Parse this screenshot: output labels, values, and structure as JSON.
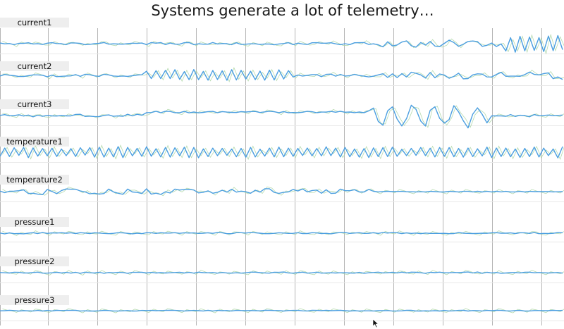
{
  "title": "Systems generate a lot of telemetry…",
  "colors": {
    "line": "#4a9ee0",
    "noise": "#a8d4a0",
    "grid": "#b5b5b5",
    "label_bg": "#eeeeee"
  },
  "chart_data": {
    "type": "line",
    "title": "Systems generate a lot of telemetry…",
    "grid": true,
    "legend": "none",
    "x": [
      0,
      1,
      2,
      3,
      4,
      5,
      6,
      7,
      8,
      9,
      10,
      11,
      12,
      13,
      14,
      15,
      16,
      17,
      18,
      19,
      20,
      21,
      22,
      23,
      24,
      25,
      26,
      27,
      28,
      29,
      30,
      31,
      32,
      33,
      34,
      35,
      36,
      37,
      38,
      39,
      40,
      41,
      42,
      43,
      44,
      45,
      46,
      47,
      48,
      49,
      50,
      51,
      52,
      53,
      54,
      55,
      56,
      57,
      58,
      59,
      60,
      61,
      62,
      63,
      64,
      65,
      66,
      67,
      68,
      69,
      70,
      71,
      72,
      73,
      74,
      75,
      76,
      77,
      78,
      79,
      80,
      81,
      82,
      83,
      84,
      85,
      86,
      87,
      88,
      89,
      90,
      91,
      92,
      93,
      94,
      95,
      96,
      97,
      98,
      99,
      100,
      101,
      102,
      103,
      104,
      105,
      106,
      107,
      108,
      109,
      110,
      111,
      112,
      113,
      114,
      115,
      116,
      117,
      118,
      119
    ],
    "series": [
      {
        "name": "current1",
        "values": [
          0.5,
          -0.1,
          0.1,
          -0.7,
          0.3,
          0.2,
          0.7,
          -0.2,
          0.0,
          -0.6,
          0.4,
          0.8,
          0.1,
          0.0,
          -0.8,
          0.6,
          0.5,
          0.2,
          -0.8,
          -0.5,
          0.0,
          0.3,
          0.9,
          -0.4,
          -0.1,
          -0.3,
          -0.4,
          0.0,
          0.4,
          0.2,
          0.5,
          -0.7,
          0.9,
          0.4,
          0.9,
          -0.7,
          0.5,
          -0.4,
          -0.4,
          0.8,
          0.9,
          -0.8,
          -0.1,
          -0.4,
          -0.4,
          0.9,
          -0.2,
          0.1,
          0.0,
          -0.8,
          0.7,
          -0.6,
          -0.4,
          -0.1,
          -0.1,
          -0.6,
          -0.3,
          -0.3,
          -0.9,
          -0.2,
          0.1,
          0.8,
          -0.7,
          0.4,
          -0.2,
          -0.6,
          0.7,
          0.8,
          0.4,
          0.4,
          0.7,
          -0.1,
          -0.8,
          0.0,
          -0.7,
          0.7,
          0.8,
          0.9,
          -0.6,
          -0.1,
          -0.9,
          -2.5,
          1.5,
          -1.8,
          -1.0,
          1.3,
          2.2,
          -1.6,
          -2.7,
          0.9,
          -1.1,
          1.7,
          -1.9,
          -2.2,
          0.3,
          2.8,
          0.9,
          -2.1,
          -0.4,
          1.7,
          2.1,
          1.6,
          -2.1,
          -1.3,
          0.5,
          -2.2,
          -0.2,
          -5.8,
          4.7,
          -6.7,
          5.8,
          -5.6,
          5.3,
          -5.3,
          4.8,
          -6.2,
          6.0,
          -5.5,
          6.4,
          -4.7
        ]
      },
      {
        "name": "current2",
        "values": [
          -0.5,
          0.7,
          0.1,
          -0.3,
          -0.9,
          -0.9,
          -0.3,
          0.4,
          0.4,
          0.1,
          -1.1,
          0.2,
          -1.0,
          -0.7,
          -0.5,
          -0.4,
          0.6,
          -0.8,
          0.9,
          0.5,
          -0.4,
          -0.8,
          0.9,
          0.4,
          -0.5,
          -0.7,
          -0.5,
          -0.8,
          -0.3,
          0.3,
          0.5,
          3.3,
          -2.5,
          3.7,
          -2.5,
          4.0,
          -2.5,
          4.5,
          -3.1,
          3.0,
          -3.4,
          4.6,
          -3.4,
          3.1,
          -3.8,
          3.9,
          -3.3,
          3.6,
          -3.9,
          4.5,
          -3.6,
          4.0,
          -2.9,
          3.3,
          -3.4,
          3.4,
          -3.8,
          4.1,
          -3.6,
          4.4,
          -2.9,
          3.8,
          -1.3,
          0.3,
          -0.5,
          0.0,
          0.6,
          0.6,
          -1.0,
          0.8,
          1.0,
          -0.6,
          0.8,
          -0.5,
          -0.2,
          0.8,
          -0.1,
          -0.6,
          -1.2,
          -0.6,
          0.4,
          1.3,
          -1.6,
          1.2,
          -1.7,
          1.4,
          -1.3,
          2.5,
          1.6,
          0.4,
          -2.1,
          2.3,
          -1.9,
          1.1,
          0.2,
          -2.3,
          -0.8,
          1.8,
          -2.7,
          -2.5,
          0.4,
          1.2,
          1.0,
          -1.2,
          -1.3,
          0.7,
          2.4,
          -0.7,
          -0.6,
          -0.6,
          -0.7,
          0.6,
          2.6,
          0.8,
          0.4,
          1.4,
          2.0,
          -2.6,
          -1.2,
          -3.2
        ]
      },
      {
        "name": "current3",
        "values": [
          0.1,
          0.7,
          -0.2,
          0.0,
          0.6,
          -0.4,
          0.4,
          -1.0,
          0.3,
          -0.6,
          0.1,
          -0.3,
          -0.4,
          0.0,
          -0.3,
          -0.3,
          0.9,
          1.0,
          -0.7,
          -0.5,
          -0.8,
          -0.9,
          0.1,
          0.5,
          -0.6,
          -0.3,
          -0.6,
          1.0,
          -0.3,
          1.0,
          0.2,
          2.3,
          2.4,
          3.4,
          2.2,
          3.4,
          3.2,
          2.2,
          2.3,
          3.3,
          2.1,
          2.8,
          2.1,
          2.5,
          3.1,
          3.3,
          2.2,
          3.1,
          2.7,
          2.5,
          2.4,
          3.1,
          2.8,
          3.1,
          3.2,
          2.4,
          2.9,
          3.4,
          3.0,
          2.3,
          3.1,
          2.2,
          2.4,
          2.2,
          2.6,
          3.4,
          3.0,
          2.2,
          2.7,
          2.7,
          3.3,
          2.6,
          3.4,
          2.6,
          2.8,
          2.3,
          2.8,
          2.2,
          3.7,
          5.9,
          -4.6,
          -7.6,
          3.7,
          6.9,
          -2.8,
          -8.2,
          -2.4,
          8.1,
          4.9,
          -4.4,
          -8.3,
          4.1,
          6.9,
          -2.2,
          -6.0,
          -3.1,
          7.8,
          2.9,
          -4.1,
          -9.8,
          1.1,
          6.1,
          0.9,
          -5.8,
          -0.2,
          -0.3,
          -0.3,
          -0.6,
          0.8,
          -0.7,
          0.2,
          0.0,
          -1.0,
          0.8,
          -0.2,
          0.1,
          0.4,
          -0.1,
          0.1,
          0.4
        ]
      },
      {
        "name": "temperature1",
        "values": [
          -3.3,
          3.3,
          -3.4,
          3.5,
          -2.5,
          3.7,
          -4.3,
          3.4,
          -3.1,
          2.9,
          -2.9,
          3.1,
          -3.4,
          2.5,
          -2.8,
          2.8,
          -3.4,
          3.5,
          -2.3,
          3.6,
          -3.9,
          3.9,
          -3.9,
          3.2,
          -3.7,
          4.4,
          -4.3,
          3.8,
          -2.9,
          3.0,
          -3.3,
          4.3,
          -3.2,
          2.7,
          -3.8,
          3.7,
          -3.9,
          3.5,
          -2.8,
          3.9,
          -4.3,
          3.7,
          -4.4,
          2.6,
          -3.5,
          3.2,
          -2.8,
          3.0,
          -2.5,
          2.5,
          -3.6,
          3.0,
          -4.0,
          3.8,
          -3.8,
          2.4,
          -3.1,
          3.2,
          -3.7,
          4.0,
          -3.6,
          3.2,
          -3.3,
          3.0,
          -2.6,
          3.3,
          -2.9,
          2.9,
          -2.9,
          4.2,
          -2.7,
          3.2,
          -3.8,
          3.7,
          -3.6,
          2.5,
          -3.9,
          2.9,
          -4.2,
          3.4,
          -3.5,
          3.6,
          -3.5,
          3.9,
          -3.3,
          2.3,
          -2.7,
          3.0,
          -2.5,
          3.7,
          -2.7,
          3.1,
          -3.8,
          3.7,
          -3.3,
          3.6,
          -3.6,
          3.0,
          -3.9,
          3.3,
          -3.5,
          2.7,
          -3.0,
          4.0,
          -4.2,
          3.3,
          -3.4,
          3.3,
          -3.6,
          2.5,
          -4.1,
          3.0,
          -3.5,
          4.0,
          -3.8,
          3.2,
          -2.7,
          2.5,
          -4.5,
          4.4
        ]
      },
      {
        "name": "temperature2",
        "values": [
          0.4,
          -0.8,
          0.3,
          0.4,
          0.7,
          1.4,
          -1.5,
          -1.3,
          -2.0,
          -2.4,
          1.7,
          0.1,
          -1.6,
          0.9,
          2.1,
          1.9,
          1.9,
          0.5,
          -0.2,
          -1.7,
          -1.3,
          -2.0,
          -1.5,
          2.0,
          -0.2,
          -1.3,
          -2.1,
          2.0,
          -0.3,
          -0.6,
          -1.5,
          2.2,
          -2.0,
          -1.2,
          -2.2,
          -0.1,
          -1.1,
          2.0,
          1.3,
          1.7,
          1.8,
          1.3,
          -1.0,
          -0.5,
          0.6,
          -1.3,
          -0.5,
          1.1,
          -0.4,
          1.9,
          -0.4,
          0.4,
          -0.1,
          -1.3,
          1.1,
          -0.4,
          2.3,
          2.3,
          -0.6,
          -1.4,
          -0.5,
          -0.2,
          1.7,
          0.5,
          2.1,
          -0.2,
          0.9,
          1.2,
          -1.3,
          1.5,
          -1.4,
          -1.2,
          2.0,
          0.8,
          0.7,
          1.5,
          -0.3,
          -0.3,
          1.7,
          0.3,
          -0.2,
          0.0,
          0.3,
          0.0,
          0.1,
          0.2,
          -0.1,
          -0.1,
          -0.2,
          -0.1,
          -0.2,
          0.2,
          0.0,
          -0.2,
          -0.3,
          0.2,
          0.0,
          -0.2,
          0.2,
          0.2,
          -0.2,
          0.3,
          -0.3,
          0.2,
          -0.2,
          0.3,
          -0.2,
          0.2,
          -0.2,
          -0.2,
          0.2,
          -0.3,
          0.2,
          0.0,
          0.0,
          0.0,
          0.0,
          -0.2,
          -0.1,
          0.0
        ]
      },
      {
        "name": "pressure1",
        "values": [
          -1.0,
          -1.6,
          -0.9,
          -1.5,
          -1.4,
          -1.6,
          -1.1,
          -0.7,
          -1.4,
          -0.6,
          -1.3,
          -0.9,
          -1.0,
          -0.7,
          -1.1,
          -0.8,
          -1.4,
          -0.7,
          -1.0,
          -1.4,
          -0.8,
          -1.0,
          -1.3,
          -1.5,
          -1.2,
          -0.7,
          -0.9,
          -1.2,
          -1.6,
          -1.1,
          -1.5,
          -0.7,
          -0.8,
          -1.3,
          -0.7,
          -1.0,
          -1.0,
          -0.7,
          -1.2,
          -0.8,
          -1.0,
          -0.9,
          -1.3,
          -1.1,
          -0.8,
          -1.2,
          -0.6,
          -0.8,
          -1.5,
          -1.5,
          -0.7,
          -0.7,
          -1.0,
          -0.6,
          -0.8,
          -1.1,
          -1.5,
          -1.5,
          -1.2,
          -0.8,
          -1.0,
          -1.3,
          -1.2,
          -0.7,
          -1.4,
          -1.4,
          -0.7,
          -0.9,
          -1.4,
          -1.2,
          -1.6,
          -1.0,
          -0.6,
          -0.6,
          -1.3,
          -1.0,
          -0.7,
          -1.3,
          -1.2,
          -0.7,
          -1.3,
          -0.6,
          -1.0,
          -0.6,
          -0.8,
          -1.4,
          -0.9,
          -1.3,
          -1.0,
          -1.5,
          -1.0,
          -1.3,
          -1.3,
          -1.3,
          -1.2,
          -1.5,
          -1.4,
          -0.6,
          -1.1,
          -1.3,
          -1.4,
          -1.3,
          -1.1,
          -1.2,
          -0.8,
          -0.7,
          -1.1,
          -1.1,
          -0.9,
          -1.4,
          -0.8,
          -0.8,
          -1.3,
          -0.6,
          -1.5,
          -1.3,
          -1.4,
          -1.2,
          -0.6,
          -0.8
        ]
      },
      {
        "name": "pressure2",
        "values": [
          0.1,
          -0.1,
          -0.3,
          0.3,
          0.2,
          -0.3,
          -0.2,
          0.1,
          0.4,
          -0.4,
          -0.4,
          -0.1,
          0.3,
          -0.3,
          0.2,
          -0.4,
          0.3,
          -0.5,
          0.4,
          -0.1,
          -0.3,
          0.3,
          -0.5,
          0.1,
          -0.1,
          0.2,
          0.1,
          -0.5,
          0.2,
          0.2,
          0.3,
          -0.3,
          0.2,
          -0.3,
          0.0,
          -0.3,
          -0.1,
          0.1,
          0.3,
          -0.3,
          0.2,
          -0.4,
          0.4,
          0.0,
          -0.1,
          0.1,
          -0.4,
          0.1,
          -0.2,
          -0.4,
          -0.1,
          -0.4,
          -0.1,
          0.4,
          0.4,
          0.0,
          -0.2,
          -0.4,
          0.3,
          0.2,
          0.5,
          -0.2,
          -0.4,
          0.0,
          0.4,
          -0.4,
          -0.1,
          0.4,
          -0.4,
          -0.2,
          -0.1,
          -0.3,
          -0.1,
          -0.1,
          -0.3,
          -0.4,
          0.2,
          -0.5,
          -0.1,
          0.1,
          0.4,
          -0.2,
          -0.1,
          0.3,
          -0.2,
          0.4,
          -0.2,
          0.4,
          0.3,
          -0.1,
          -0.5,
          0.3,
          0.0,
          0.4,
          -0.1,
          -0.1,
          0.1,
          0.0,
          0.3,
          0.5,
          -0.3,
          0.5,
          -0.5,
          0.3,
          -0.2,
          0.1,
          -0.5,
          -0.3,
          0.0,
          0.1,
          -0.2,
          0.3,
          0.4,
          -0.1,
          0.1,
          -0.1,
          -0.3,
          -0.1,
          0.1,
          -0.4
        ]
      },
      {
        "name": "pressure3",
        "values": [
          -0.1,
          0.0,
          0.3,
          0.1,
          -0.3,
          0.0,
          -0.1,
          -0.2,
          0.2,
          -0.3,
          0.2,
          -0.2,
          0.3,
          0.1,
          0.2,
          0.2,
          0.3,
          -0.2,
          -0.1,
          -0.3,
          -0.3,
          -0.1,
          0.3,
          0.1,
          -0.2,
          -0.2,
          -0.1,
          0.1,
          -0.3,
          -0.2,
          0.2,
          0.1,
          0.2,
          0.0,
          0.1,
          0.2,
          0.3,
          0.2,
          0.0,
          -0.2,
          0.0,
          0.2,
          0.0,
          -0.2,
          0.3,
          -0.2,
          0.2,
          0.0,
          0.1,
          -0.2,
          0.2,
          0.1,
          0.0,
          0.1,
          0.0,
          -0.1,
          0.3,
          0.3,
          0.1,
          0.1,
          -0.3,
          0.1,
          0.2,
          0.2,
          -0.1,
          -0.2,
          0.3,
          0.2,
          0.0,
          0.3,
          0.0,
          0.1,
          0.3,
          0.0,
          -0.3,
          0.0,
          -0.3,
          -0.1,
          -0.1,
          -0.2,
          0.0,
          0.0,
          0.1,
          -0.2,
          -0.2,
          -0.1,
          0.3,
          0.3,
          -0.2,
          -0.3,
          -0.1,
          -0.2,
          0.0,
          -0.3,
          0.2,
          -0.2,
          -0.1,
          0.2,
          0.3,
          -0.3,
          0.1,
          0.0,
          -0.2,
          0.2,
          0.0,
          0.3,
          0.2,
          -0.1,
          -0.2,
          0.1,
          0.2,
          -0.3,
          -0.2,
          0.1,
          0.1,
          0.0,
          0.0,
          0.3,
          0.1,
          0.2
        ]
      }
    ]
  }
}
